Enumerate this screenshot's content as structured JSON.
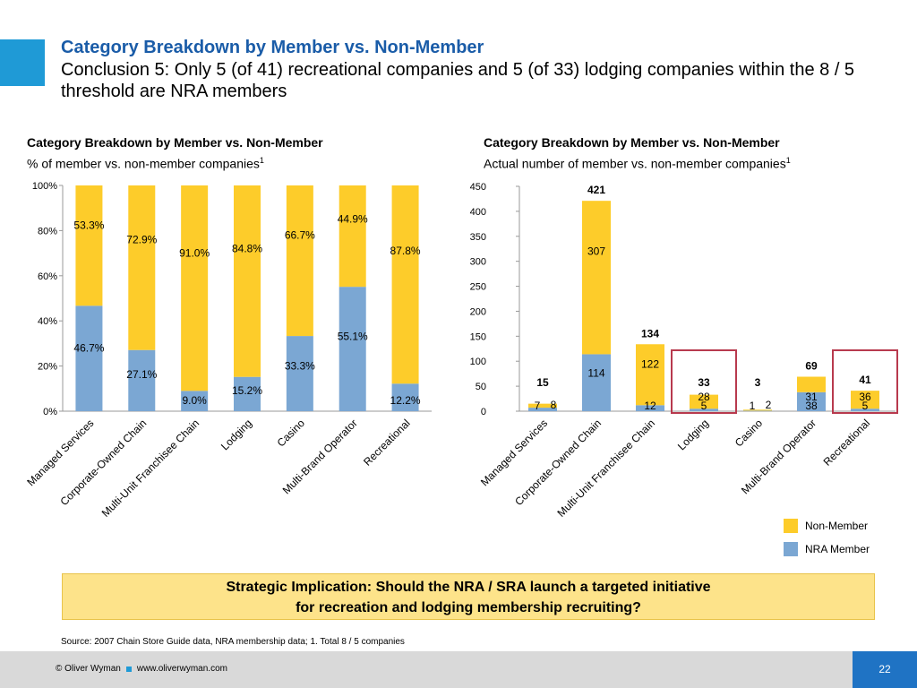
{
  "slide": {
    "title": "Category Breakdown by Member vs. Non-Member",
    "subtitle": "Conclusion 5: Only 5 (of 41) recreational companies and 5 (of 33) lodging companies within the 8 / 5 threshold are NRA members"
  },
  "left_chart_heading": {
    "title": "Category Breakdown by Member vs. Non-Member",
    "subtitle": "% of member vs. non-member companies",
    "sup": "1"
  },
  "right_chart_heading": {
    "title": "Category Breakdown by Member vs. Non-Member",
    "subtitle": "Actual number of member vs. non-member companies",
    "sup": "1"
  },
  "colors": {
    "member": "#7ba7d3",
    "non_member": "#fdcc2a",
    "highlight_box": "#b83a4e",
    "title_blue": "#1a5ca8",
    "accent": "#1f9ad6"
  },
  "legend": {
    "non_member": "Non-Member",
    "member": "NRA Member"
  },
  "implication": {
    "line1": "Strategic Implication: Should the NRA / SRA launch a targeted initiative",
    "line2": "for recreation and lodging membership recruiting?"
  },
  "source": "Source: 2007 Chain Store Guide data, NRA membership data; 1. Total 8 / 5 companies",
  "footer": {
    "copyright": "© Oliver Wyman",
    "url": "www.oliverwyman.com",
    "page": "22"
  },
  "chart_data": [
    {
      "type": "bar",
      "stacked": true,
      "categories": [
        "Managed Services",
        "Corporate-Owned Chain",
        "Multi-Unit Franchisee Chain",
        "Lodging",
        "Casino",
        "Multi-Brand Operator",
        "Recreational"
      ],
      "series": [
        {
          "name": "NRA Member",
          "values": [
            46.7,
            27.1,
            9.0,
            15.2,
            33.3,
            55.1,
            12.2
          ],
          "labels": [
            "46.7%",
            "27.1%",
            "9.0%",
            "15.2%",
            "33.3%",
            "55.1%",
            "12.2%"
          ]
        },
        {
          "name": "Non-Member",
          "values": [
            53.3,
            72.9,
            91.0,
            84.8,
            66.7,
            44.9,
            87.8
          ],
          "labels": [
            "53.3%",
            "72.9%",
            "91.0%",
            "84.8%",
            "66.7%",
            "44.9%",
            "87.8%"
          ]
        }
      ],
      "ylim": [
        0,
        100
      ],
      "yticks": [
        "0%",
        "20%",
        "40%",
        "60%",
        "80%",
        "100%"
      ],
      "xlabel": "",
      "ylabel": ""
    },
    {
      "type": "bar",
      "stacked": true,
      "categories": [
        "Managed Services",
        "Corporate-Owned Chain",
        "Multi-Unit Franchisee Chain",
        "Lodging",
        "Casino",
        "Multi-Brand Operator",
        "Recreational"
      ],
      "series": [
        {
          "name": "NRA Member",
          "values": [
            7,
            114,
            12,
            5,
            1,
            38,
            5
          ]
        },
        {
          "name": "Non-Member",
          "values": [
            8,
            307,
            122,
            28,
            2,
            31,
            36
          ]
        }
      ],
      "totals": [
        15,
        421,
        134,
        33,
        3,
        69,
        41
      ],
      "highlighted_categories": [
        "Lodging",
        "Recreational"
      ],
      "ylim": [
        0,
        450
      ],
      "yticks": [
        "0",
        "50",
        "100",
        "150",
        "200",
        "250",
        "300",
        "350",
        "400",
        "450"
      ],
      "xlabel": "",
      "ylabel": ""
    }
  ]
}
